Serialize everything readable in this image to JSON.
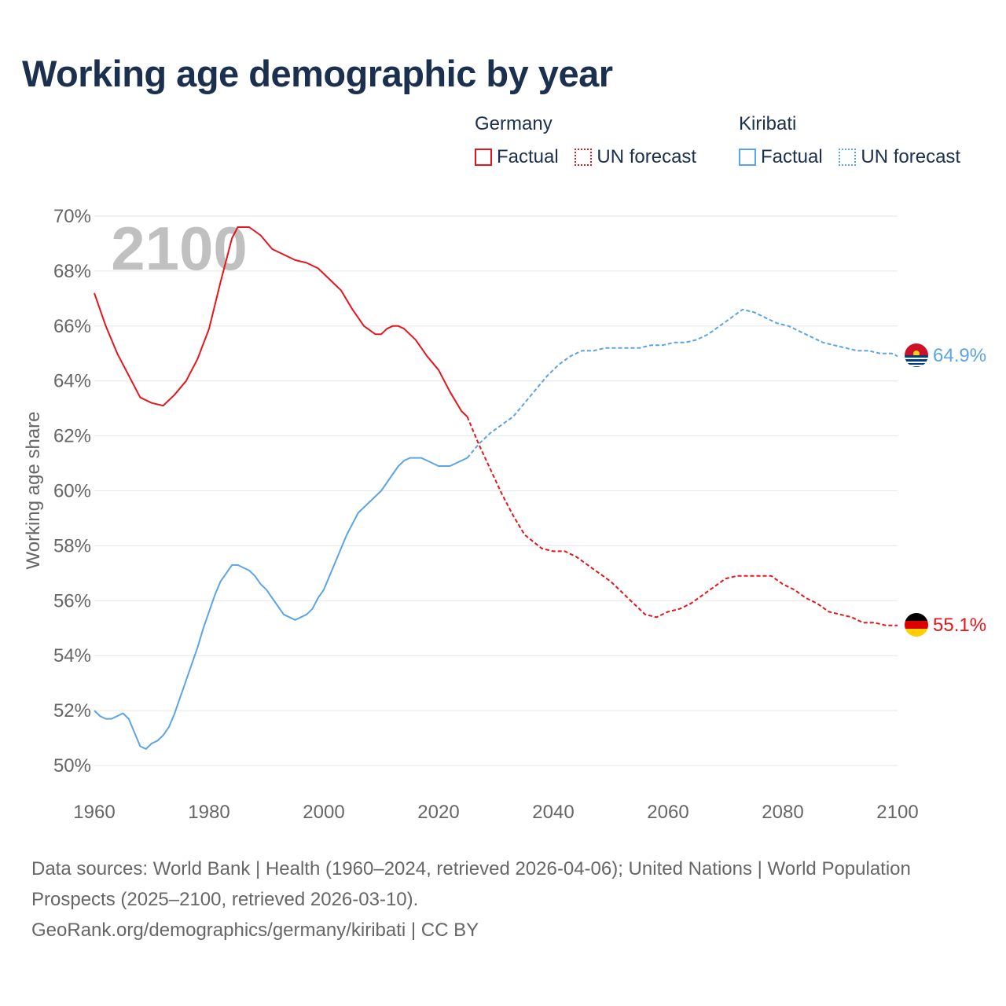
{
  "title": "Working age demographic by year",
  "legend": {
    "germany": {
      "name": "Germany",
      "factual": "Factual",
      "forecast": "UN forecast"
    },
    "kiribati": {
      "name": "Kiribati",
      "factual": "Factual",
      "forecast": "UN forecast"
    }
  },
  "footer": {
    "sources": "Data sources: World Bank | Health (1960–2024, retrieved 2026-04-06); United Nations | World Population Prospects (2025–2100, retrieved 2026-03-10).",
    "credit": "GeoRank.org/demographics/germany/kiribati | CC BY"
  },
  "colors": {
    "germany": "#e8141b",
    "kiribati": "#5ba4e5",
    "title": "#1b2f4e",
    "grid": "#e6e6e6",
    "axis_text": "#666666"
  },
  "chart_data": {
    "type": "line",
    "title": "Working age demographic by year",
    "ylabel": "Working age share",
    "xlabel": "",
    "xlim": [
      1960,
      2100
    ],
    "ylim": [
      50,
      70
    ],
    "xticks": [
      1960,
      1980,
      2000,
      2020,
      2040,
      2060,
      2080,
      2100
    ],
    "yticks": [
      50,
      52,
      54,
      56,
      58,
      60,
      62,
      64,
      66,
      68,
      70
    ],
    "ytick_suffix": "%",
    "year_watermark": "2100",
    "series": [
      {
        "name": "Germany",
        "end_label": "55.1%",
        "factual": [
          [
            1960,
            67.2
          ],
          [
            1962,
            66.0
          ],
          [
            1964,
            65.0
          ],
          [
            1966,
            64.2
          ],
          [
            1968,
            63.4
          ],
          [
            1970,
            63.2
          ],
          [
            1972,
            63.1
          ],
          [
            1974,
            63.5
          ],
          [
            1976,
            64.0
          ],
          [
            1978,
            64.8
          ],
          [
            1980,
            65.9
          ],
          [
            1982,
            67.6
          ],
          [
            1984,
            69.2
          ],
          [
            1985,
            69.6
          ],
          [
            1987,
            69.6
          ],
          [
            1989,
            69.3
          ],
          [
            1991,
            68.8
          ],
          [
            1993,
            68.6
          ],
          [
            1995,
            68.4
          ],
          [
            1997,
            68.3
          ],
          [
            1999,
            68.1
          ],
          [
            2001,
            67.7
          ],
          [
            2003,
            67.3
          ],
          [
            2005,
            66.6
          ],
          [
            2007,
            66.0
          ],
          [
            2009,
            65.7
          ],
          [
            2010,
            65.7
          ],
          [
            2011,
            65.9
          ],
          [
            2012,
            66.0
          ],
          [
            2013,
            66.0
          ],
          [
            2014,
            65.9
          ],
          [
            2016,
            65.5
          ],
          [
            2018,
            64.9
          ],
          [
            2020,
            64.4
          ],
          [
            2022,
            63.6
          ],
          [
            2024,
            62.9
          ],
          [
            2025,
            62.7
          ]
        ],
        "forecast": [
          [
            2025,
            62.7
          ],
          [
            2027,
            61.7
          ],
          [
            2029,
            60.8
          ],
          [
            2031,
            59.9
          ],
          [
            2033,
            59.1
          ],
          [
            2035,
            58.4
          ],
          [
            2038,
            57.9
          ],
          [
            2040,
            57.8
          ],
          [
            2042,
            57.8
          ],
          [
            2044,
            57.6
          ],
          [
            2046,
            57.3
          ],
          [
            2048,
            57.0
          ],
          [
            2050,
            56.7
          ],
          [
            2052,
            56.3
          ],
          [
            2054,
            55.9
          ],
          [
            2056,
            55.5
          ],
          [
            2058,
            55.4
          ],
          [
            2060,
            55.6
          ],
          [
            2062,
            55.7
          ],
          [
            2064,
            55.9
          ],
          [
            2066,
            56.2
          ],
          [
            2068,
            56.5
          ],
          [
            2070,
            56.8
          ],
          [
            2072,
            56.9
          ],
          [
            2074,
            56.9
          ],
          [
            2076,
            56.9
          ],
          [
            2078,
            56.9
          ],
          [
            2080,
            56.6
          ],
          [
            2082,
            56.4
          ],
          [
            2084,
            56.1
          ],
          [
            2086,
            55.9
          ],
          [
            2088,
            55.6
          ],
          [
            2090,
            55.5
          ],
          [
            2092,
            55.4
          ],
          [
            2094,
            55.2
          ],
          [
            2096,
            55.2
          ],
          [
            2098,
            55.1
          ],
          [
            2100,
            55.1
          ]
        ]
      },
      {
        "name": "Kiribati",
        "end_label": "64.9%",
        "factual": [
          [
            1960,
            52.0
          ],
          [
            1961,
            51.8
          ],
          [
            1962,
            51.7
          ],
          [
            1963,
            51.7
          ],
          [
            1964,
            51.8
          ],
          [
            1965,
            51.9
          ],
          [
            1966,
            51.7
          ],
          [
            1967,
            51.2
          ],
          [
            1968,
            50.7
          ],
          [
            1969,
            50.6
          ],
          [
            1970,
            50.8
          ],
          [
            1971,
            50.9
          ],
          [
            1972,
            51.1
          ],
          [
            1973,
            51.4
          ],
          [
            1974,
            51.9
          ],
          [
            1975,
            52.5
          ],
          [
            1976,
            53.1
          ],
          [
            1977,
            53.7
          ],
          [
            1978,
            54.3
          ],
          [
            1979,
            55.0
          ],
          [
            1980,
            55.6
          ],
          [
            1981,
            56.2
          ],
          [
            1982,
            56.7
          ],
          [
            1983,
            57.0
          ],
          [
            1984,
            57.3
          ],
          [
            1985,
            57.3
          ],
          [
            1986,
            57.2
          ],
          [
            1987,
            57.1
          ],
          [
            1988,
            56.9
          ],
          [
            1989,
            56.6
          ],
          [
            1990,
            56.4
          ],
          [
            1991,
            56.1
          ],
          [
            1992,
            55.8
          ],
          [
            1993,
            55.5
          ],
          [
            1994,
            55.4
          ],
          [
            1995,
            55.3
          ],
          [
            1996,
            55.4
          ],
          [
            1997,
            55.5
          ],
          [
            1998,
            55.7
          ],
          [
            1999,
            56.1
          ],
          [
            2000,
            56.4
          ],
          [
            2001,
            56.9
          ],
          [
            2002,
            57.4
          ],
          [
            2003,
            57.9
          ],
          [
            2004,
            58.4
          ],
          [
            2005,
            58.8
          ],
          [
            2006,
            59.2
          ],
          [
            2007,
            59.4
          ],
          [
            2008,
            59.6
          ],
          [
            2009,
            59.8
          ],
          [
            2010,
            60.0
          ],
          [
            2011,
            60.3
          ],
          [
            2012,
            60.6
          ],
          [
            2013,
            60.9
          ],
          [
            2014,
            61.1
          ],
          [
            2015,
            61.2
          ],
          [
            2016,
            61.2
          ],
          [
            2017,
            61.2
          ],
          [
            2018,
            61.1
          ],
          [
            2019,
            61.0
          ],
          [
            2020,
            60.9
          ],
          [
            2021,
            60.9
          ],
          [
            2022,
            60.9
          ],
          [
            2023,
            61.0
          ],
          [
            2024,
            61.1
          ],
          [
            2025,
            61.2
          ]
        ],
        "forecast": [
          [
            2025,
            61.2
          ],
          [
            2027,
            61.7
          ],
          [
            2029,
            62.1
          ],
          [
            2031,
            62.4
          ],
          [
            2033,
            62.7
          ],
          [
            2035,
            63.2
          ],
          [
            2037,
            63.7
          ],
          [
            2039,
            64.2
          ],
          [
            2041,
            64.6
          ],
          [
            2043,
            64.9
          ],
          [
            2045,
            65.1
          ],
          [
            2047,
            65.1
          ],
          [
            2049,
            65.2
          ],
          [
            2051,
            65.2
          ],
          [
            2053,
            65.2
          ],
          [
            2055,
            65.2
          ],
          [
            2057,
            65.3
          ],
          [
            2059,
            65.3
          ],
          [
            2061,
            65.4
          ],
          [
            2063,
            65.4
          ],
          [
            2065,
            65.5
          ],
          [
            2067,
            65.7
          ],
          [
            2069,
            66.0
          ],
          [
            2071,
            66.3
          ],
          [
            2073,
            66.6
          ],
          [
            2075,
            66.5
          ],
          [
            2077,
            66.3
          ],
          [
            2079,
            66.1
          ],
          [
            2081,
            66.0
          ],
          [
            2083,
            65.8
          ],
          [
            2085,
            65.6
          ],
          [
            2087,
            65.4
          ],
          [
            2089,
            65.3
          ],
          [
            2091,
            65.2
          ],
          [
            2093,
            65.1
          ],
          [
            2095,
            65.1
          ],
          [
            2097,
            65.0
          ],
          [
            2099,
            65.0
          ],
          [
            2100,
            64.9
          ]
        ]
      }
    ]
  }
}
